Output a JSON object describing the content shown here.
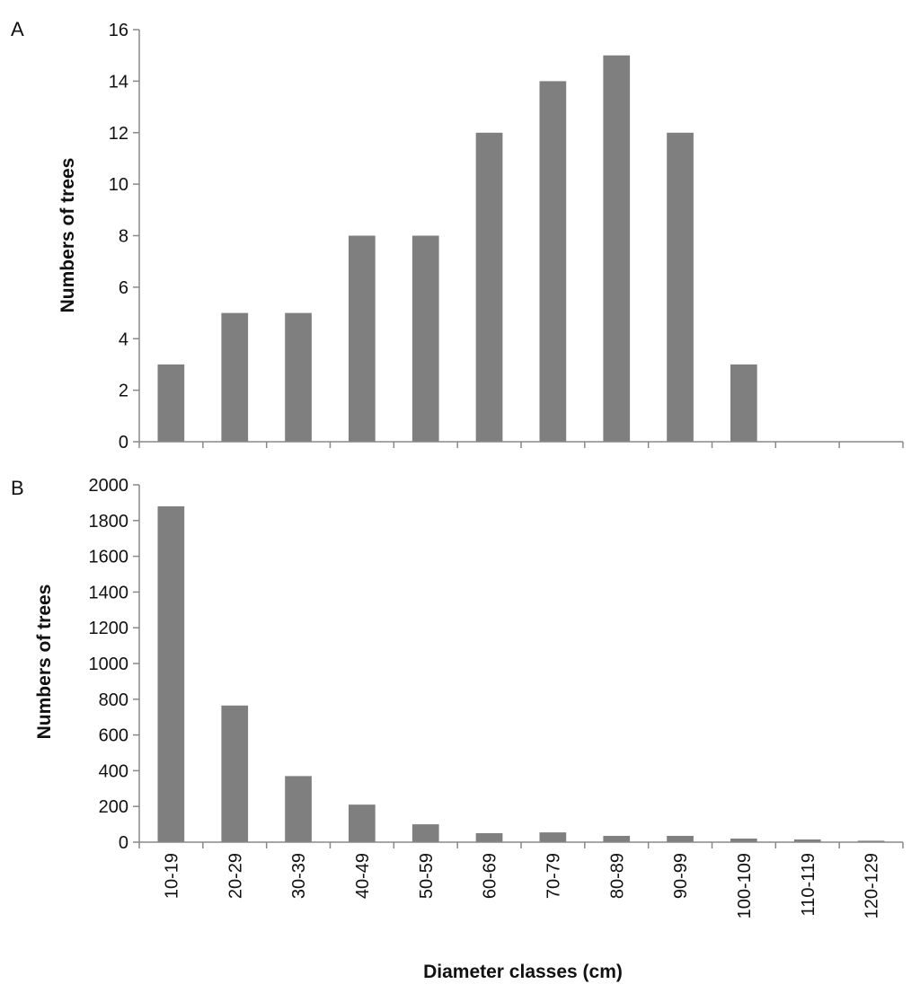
{
  "figure": {
    "xlabel": "Diameter classes (cm)",
    "bar_color": "#7f7f7f",
    "axis_color": "#888888"
  },
  "chart_data": [
    {
      "type": "bar",
      "panel_label": "A",
      "title": "",
      "xlabel": "Diameter classes (cm)",
      "ylabel": "Numbers of trees",
      "ylim": [
        0,
        16
      ],
      "yticks": [
        0,
        2,
        4,
        6,
        8,
        10,
        12,
        14,
        16
      ],
      "grid": false,
      "categories": [
        "10-19",
        "20-29",
        "30-39",
        "40-49",
        "50-59",
        "60-69",
        "70-79",
        "80-89",
        "90-99",
        "100-109",
        "110-119",
        "120-129"
      ],
      "values": [
        3,
        5,
        5,
        8,
        8,
        12,
        14,
        15,
        12,
        3,
        0,
        0
      ]
    },
    {
      "type": "bar",
      "panel_label": "B",
      "title": "",
      "xlabel": "Diameter classes (cm)",
      "ylabel": "Numbers of trees",
      "ylim": [
        0,
        2000
      ],
      "yticks": [
        0,
        200,
        400,
        600,
        800,
        1000,
        1200,
        1400,
        1600,
        1800,
        2000
      ],
      "grid": false,
      "categories": [
        "10-19",
        "20-29",
        "30-39",
        "40-49",
        "50-59",
        "60-69",
        "70-79",
        "80-89",
        "90-99",
        "100-109",
        "110-119",
        "120-129"
      ],
      "values": [
        1880,
        765,
        370,
        210,
        100,
        50,
        55,
        35,
        35,
        20,
        15,
        8
      ]
    }
  ]
}
